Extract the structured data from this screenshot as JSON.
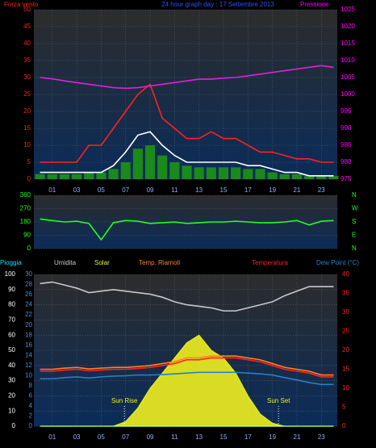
{
  "chart_data": [
    {
      "type": "line",
      "title": "24 hour graph day : 17 Settembre 2013",
      "y_label": "Forza vento",
      "y2_label": "Pressione",
      "title_color": "#3050ff",
      "axis_colors": {
        "y": "#ff2020",
        "y2": "#ff00ff"
      },
      "x": [
        0,
        1,
        2,
        3,
        4,
        5,
        6,
        7,
        8,
        9,
        10,
        11,
        12,
        13,
        14,
        15,
        16,
        17,
        18,
        19,
        20,
        21,
        22,
        23,
        24
      ],
      "xlim": [
        -0.5,
        24.3
      ],
      "xticks": [
        {
          "value": 1,
          "label": "01"
        },
        {
          "value": 3,
          "label": "03"
        },
        {
          "value": 5,
          "label": "05"
        },
        {
          "value": 7,
          "label": "07"
        },
        {
          "value": 9,
          "label": "09"
        },
        11,
        13,
        15,
        17,
        19,
        21,
        23
      ],
      "ylim": [
        0,
        50
      ],
      "yticks": [
        0,
        5,
        10,
        15,
        20,
        25,
        30,
        35,
        40,
        45,
        50
      ],
      "y2lim": [
        975,
        1025
      ],
      "y2ticks": [
        975,
        980,
        985,
        990,
        995,
        1000,
        1005,
        1010,
        1015,
        1020,
        1025
      ],
      "series": [
        {
          "kind": "bars",
          "color": "#1a8a1a",
          "values": [
            1.5,
            1.5,
            1.5,
            1.5,
            2,
            2,
            3,
            5,
            9,
            10,
            7,
            5,
            4,
            3.5,
            3.5,
            3.5,
            3.5,
            3,
            3,
            2,
            1.5,
            1.5,
            1,
            1,
            1
          ]
        },
        {
          "kind": "line",
          "color": "#ff2020",
          "values": [
            5,
            5,
            5,
            5,
            10,
            10,
            15,
            20,
            25,
            28,
            18,
            15,
            12,
            12,
            14,
            12,
            12,
            10,
            8,
            8,
            7,
            6,
            6,
            5,
            5
          ]
        },
        {
          "kind": "line",
          "color": "#ffffff",
          "values": [
            2,
            2,
            2,
            2,
            2,
            2,
            4,
            8,
            13,
            14,
            10,
            7,
            5,
            5,
            5,
            5,
            5,
            4,
            4,
            3,
            2,
            2,
            1,
            1,
            1
          ]
        },
        {
          "kind": "line",
          "color": "#e020e0",
          "axis": "y2",
          "values": [
            1005,
            1004.6,
            1004,
            1003.5,
            1003,
            1002.5,
            1002,
            1001.8,
            1002,
            1002.5,
            1003,
            1003.5,
            1004,
            1004.5,
            1004.5,
            1004.8,
            1005,
            1005.5,
            1006,
            1006.5,
            1007,
            1007.5,
            1008,
            1008.5,
            1008
          ]
        }
      ]
    },
    {
      "type": "line",
      "axis_colors": {
        "y": "#20ff20",
        "y2": "#20ff20"
      },
      "x": [
        0,
        1,
        2,
        3,
        4,
        5,
        6,
        7,
        8,
        9,
        10,
        11,
        12,
        13,
        14,
        15,
        16,
        17,
        18,
        19,
        20,
        21,
        22,
        23,
        24
      ],
      "xlim": [
        -0.5,
        24.3
      ],
      "ylim": [
        0,
        360
      ],
      "yticks": [
        0,
        90,
        180,
        270,
        360
      ],
      "y2lim": [
        0,
        360
      ],
      "y2ticks": [
        {
          "value": 360,
          "label": "N"
        },
        {
          "value": 270,
          "label": "W"
        },
        {
          "value": 180,
          "label": "S"
        },
        {
          "value": 90,
          "label": "E"
        },
        {
          "value": 0,
          "label": "N"
        }
      ],
      "series": [
        {
          "kind": "line",
          "color": "#20ff20",
          "values": [
            200,
            190,
            180,
            185,
            170,
            60,
            175,
            190,
            185,
            170,
            175,
            180,
            170,
            175,
            180,
            180,
            185,
            180,
            175,
            175,
            180,
            190,
            160,
            185,
            190
          ]
        }
      ]
    },
    {
      "type": "line",
      "axis_colors": {
        "y": "#ffffff",
        "y2": "#ff2020",
        "y3": "#4a90d0"
      },
      "x": [
        0,
        1,
        2,
        3,
        4,
        5,
        6,
        7,
        8,
        9,
        10,
        11,
        12,
        13,
        14,
        15,
        16,
        17,
        18,
        19,
        20,
        21,
        22,
        23,
        24
      ],
      "xlim": [
        -0.5,
        24.3
      ],
      "xticks": [
        {
          "value": 1,
          "label": "01"
        },
        {
          "value": 3,
          "label": "03"
        },
        {
          "value": 5,
          "label": "05"
        },
        {
          "value": 7,
          "label": "07"
        },
        {
          "value": 9,
          "label": "09"
        },
        11,
        13,
        15,
        17,
        19,
        21,
        23
      ],
      "ylim": [
        0,
        100
      ],
      "yticks": [
        0,
        10,
        20,
        30,
        40,
        50,
        60,
        70,
        80,
        90,
        100
      ],
      "y3lim": [
        0,
        30
      ],
      "y3ticks": [
        0,
        2,
        4,
        6,
        8,
        10,
        12,
        14,
        16,
        18,
        20,
        22,
        24,
        26,
        28,
        30
      ],
      "y2lim": [
        0,
        40
      ],
      "y2ticks": [
        0,
        5,
        10,
        15,
        20,
        25,
        30,
        35,
        40
      ],
      "series": [
        {
          "name": "Pioggia",
          "kind": "line",
          "color": "#00e0ff",
          "axis": "y3",
          "values": [
            0,
            0,
            0,
            0,
            0,
            0,
            0,
            0,
            0,
            0,
            0,
            0,
            0,
            0,
            0,
            0,
            0,
            0,
            0,
            0,
            0,
            0,
            0,
            0,
            0
          ]
        },
        {
          "name": "Umidita",
          "kind": "line",
          "color": "#c8c8c8",
          "values": [
            94,
            95,
            93,
            91,
            88,
            89,
            90,
            89,
            88,
            87,
            85,
            82,
            80,
            79,
            78,
            76,
            76,
            78,
            80,
            82,
            86,
            89,
            92,
            92,
            92
          ]
        },
        {
          "name": "Solar",
          "kind": "area",
          "color": "#f0f020",
          "values": [
            0,
            0,
            0,
            0,
            0,
            0,
            0,
            3,
            12,
            25,
            35,
            45,
            55,
            60,
            50,
            45,
            35,
            20,
            8,
            2,
            0,
            0,
            0,
            0,
            0
          ]
        },
        {
          "name": "Temp. Riarnoli",
          "kind": "line",
          "color": "#ff8020",
          "axis": "y2",
          "values": [
            15,
            15,
            15.3,
            15.5,
            15.1,
            15.3,
            15.5,
            15.5,
            15.7,
            16,
            16.5,
            17,
            18,
            18,
            18.5,
            18.5,
            18.5,
            18,
            17.5,
            16.5,
            15.5,
            15,
            14.5,
            13.5,
            13.5
          ]
        },
        {
          "name": "Temperatura",
          "kind": "line",
          "color": "#ff2020",
          "axis": "y2",
          "values": [
            14.5,
            14.5,
            14.8,
            15,
            14.6,
            14.8,
            15,
            15,
            15.2,
            15.5,
            16,
            16.5,
            17.5,
            17.5,
            18,
            18,
            18,
            17.5,
            17,
            16,
            15,
            14.5,
            14,
            13,
            13
          ]
        },
        {
          "name": "Dew Point (°C)",
          "kind": "line",
          "color": "#2080d0",
          "axis": "y2",
          "values": [
            12.5,
            12.5,
            12.8,
            13,
            12.7,
            13,
            13.2,
            13.3,
            13.5,
            13.5,
            13.6,
            13.8,
            14,
            14.2,
            14.2,
            14.2,
            14.2,
            14,
            13.8,
            13.5,
            12.8,
            12.2,
            11.5,
            11,
            11
          ]
        }
      ],
      "annotations": [
        {
          "text": "Sun Rise",
          "x": 6.9
        },
        {
          "text": "Sun Set",
          "x": 19.5
        }
      ]
    }
  ]
}
